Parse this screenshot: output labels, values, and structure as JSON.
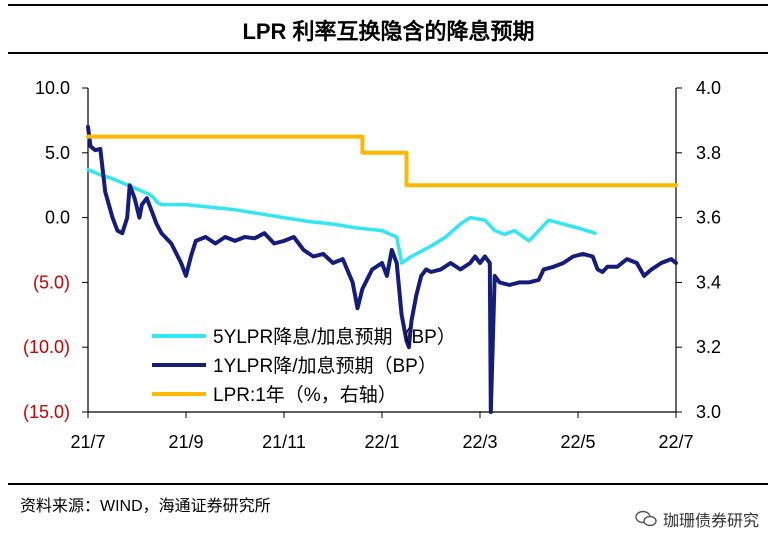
{
  "title": "LPR 利率互换隐含的降息预期",
  "source": "资料来源：WIND，海通证券研究所",
  "watermark": "珈珊债券研究",
  "colors": {
    "s5y": "#33E6F0",
    "s1y": "#141E7A",
    "lpr": "#FFB800",
    "neg_label": "#CC0000",
    "axis": "#000000"
  },
  "chart_data": {
    "type": "line",
    "title": "LPR 利率互换隐含的降息预期",
    "x_ticks": [
      "21/7",
      "21/9",
      "21/11",
      "22/1",
      "22/3",
      "22/5",
      "22/7"
    ],
    "x_domain": [
      0,
      12
    ],
    "y_left": {
      "min": -15,
      "max": 10,
      "ticks": [
        10,
        5,
        0,
        -5,
        -10,
        -15
      ],
      "tick_labels": [
        "10.0",
        "5.0",
        "0.0",
        "(5.0)",
        "(10.0)",
        "(15.0)"
      ]
    },
    "y_right": {
      "min": 3.0,
      "max": 4.0,
      "ticks": [
        4.0,
        3.8,
        3.6,
        3.4,
        3.2,
        3.0
      ],
      "tick_labels": [
        "4.0",
        "3.8",
        "3.6",
        "3.4",
        "3.2",
        "3.0"
      ]
    },
    "legend": [
      "5YLPR降息/加息预期（BP）",
      "1YLPR降/加息预期（BP）",
      "LPR:1年（%，右轴）"
    ],
    "series": [
      {
        "name": "5YLPR降息/加息预期（BP）",
        "axis": "left",
        "step": false,
        "points": [
          [
            0,
            3.7
          ],
          [
            0.25,
            3.3
          ],
          [
            0.5,
            3.0
          ],
          [
            0.75,
            2.6
          ],
          [
            1.0,
            2.2
          ],
          [
            1.25,
            1.8
          ],
          [
            1.35,
            1.5
          ],
          [
            1.4,
            1.2
          ],
          [
            1.5,
            1.0
          ],
          [
            1.75,
            1.0
          ],
          [
            2.0,
            1.0
          ],
          [
            2.5,
            0.8
          ],
          [
            3.0,
            0.6
          ],
          [
            3.5,
            0.3
          ],
          [
            4.0,
            0
          ],
          [
            4.5,
            -0.3
          ],
          [
            5.0,
            -0.5
          ],
          [
            5.5,
            -0.8
          ],
          [
            6.0,
            -1.0
          ],
          [
            6.3,
            -1.5
          ],
          [
            6.4,
            -3.5
          ],
          [
            6.6,
            -3.0
          ],
          [
            7.0,
            -2.2
          ],
          [
            7.3,
            -1.5
          ],
          [
            7.6,
            -0.5
          ],
          [
            7.8,
            0
          ],
          [
            8.1,
            -0.2
          ],
          [
            8.3,
            -1.0
          ],
          [
            8.5,
            -1.3
          ],
          [
            8.7,
            -1.0
          ],
          [
            9.0,
            -1.8
          ],
          [
            9.2,
            -1.0
          ],
          [
            9.4,
            -0.2
          ],
          [
            9.7,
            -0.5
          ],
          [
            10.0,
            -0.8
          ],
          [
            10.35,
            -1.2
          ]
        ]
      },
      {
        "name": "1YLPR降/加息预期（BP）",
        "axis": "left",
        "step": false,
        "points": [
          [
            0,
            7.0
          ],
          [
            0.05,
            5.5
          ],
          [
            0.15,
            5.2
          ],
          [
            0.25,
            5.3
          ],
          [
            0.35,
            2.0
          ],
          [
            0.5,
            0
          ],
          [
            0.6,
            -1.0
          ],
          [
            0.7,
            -1.2
          ],
          [
            0.8,
            0
          ],
          [
            0.85,
            2.5
          ],
          [
            0.95,
            1.5
          ],
          [
            1.05,
            0
          ],
          [
            1.1,
            1.0
          ],
          [
            1.2,
            1.5
          ],
          [
            1.3,
            0.5
          ],
          [
            1.4,
            -0.5
          ],
          [
            1.5,
            -1.2
          ],
          [
            1.7,
            -2.0
          ],
          [
            1.9,
            -3.5
          ],
          [
            2.0,
            -4.5
          ],
          [
            2.1,
            -3.0
          ],
          [
            2.2,
            -1.8
          ],
          [
            2.4,
            -1.5
          ],
          [
            2.6,
            -2.0
          ],
          [
            2.8,
            -1.5
          ],
          [
            3.0,
            -1.8
          ],
          [
            3.2,
            -1.5
          ],
          [
            3.4,
            -1.6
          ],
          [
            3.6,
            -1.2
          ],
          [
            3.8,
            -2.0
          ],
          [
            4.0,
            -1.8
          ],
          [
            4.2,
            -1.5
          ],
          [
            4.4,
            -2.5
          ],
          [
            4.6,
            -3.0
          ],
          [
            4.8,
            -2.8
          ],
          [
            5.0,
            -3.5
          ],
          [
            5.2,
            -3.2
          ],
          [
            5.4,
            -5.0
          ],
          [
            5.5,
            -7.0
          ],
          [
            5.6,
            -5.5
          ],
          [
            5.8,
            -4.0
          ],
          [
            6.0,
            -3.5
          ],
          [
            6.1,
            -4.5
          ],
          [
            6.2,
            -2.5
          ],
          [
            6.3,
            -3.5
          ],
          [
            6.4,
            -7.5
          ],
          [
            6.5,
            -9.5
          ],
          [
            6.55,
            -10.0
          ],
          [
            6.6,
            -8.0
          ],
          [
            6.7,
            -6.0
          ],
          [
            6.8,
            -4.5
          ],
          [
            6.9,
            -4.0
          ],
          [
            7.0,
            -4.2
          ],
          [
            7.2,
            -4.0
          ],
          [
            7.4,
            -3.5
          ],
          [
            7.6,
            -4.0
          ],
          [
            7.8,
            -3.5
          ],
          [
            7.9,
            -3.0
          ],
          [
            8.0,
            -3.5
          ],
          [
            8.1,
            -3.0
          ],
          [
            8.2,
            -3.5
          ],
          [
            8.22,
            -15.0
          ],
          [
            8.3,
            -4.5
          ],
          [
            8.4,
            -5.0
          ],
          [
            8.6,
            -5.2
          ],
          [
            8.8,
            -5.0
          ],
          [
            9.0,
            -5.0
          ],
          [
            9.2,
            -4.8
          ],
          [
            9.3,
            -4.0
          ],
          [
            9.5,
            -3.8
          ],
          [
            9.7,
            -3.5
          ],
          [
            9.9,
            -3.0
          ],
          [
            10.1,
            -2.8
          ],
          [
            10.3,
            -3.0
          ],
          [
            10.4,
            -4.0
          ],
          [
            10.5,
            -4.2
          ],
          [
            10.6,
            -3.8
          ],
          [
            10.8,
            -3.8
          ],
          [
            11.0,
            -3.2
          ],
          [
            11.2,
            -3.5
          ],
          [
            11.35,
            -4.5
          ],
          [
            11.5,
            -4.0
          ],
          [
            11.7,
            -3.5
          ],
          [
            11.9,
            -3.2
          ],
          [
            12.0,
            -3.5
          ]
        ]
      },
      {
        "name": "LPR:1年（%，右轴）",
        "axis": "right",
        "step": true,
        "points": [
          [
            0,
            3.85
          ],
          [
            5.6,
            3.85
          ],
          [
            5.6,
            3.8
          ],
          [
            6.5,
            3.8
          ],
          [
            6.5,
            3.7
          ],
          [
            12.0,
            3.7
          ]
        ]
      }
    ]
  }
}
